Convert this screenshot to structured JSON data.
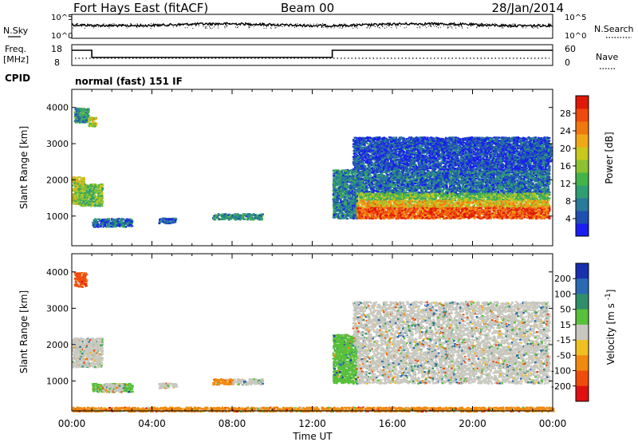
{
  "header": {
    "station": "Fort Hays East (fitACF)",
    "beam": "Beam 00",
    "date": "28/Jan/2014"
  },
  "noise_panel": {
    "left_label": "N.Sky",
    "left_ticks": [
      "10^5",
      "10^0"
    ],
    "right_label": "N.Search",
    "right_ticks": [
      "10^5",
      "10^0"
    ]
  },
  "freq_panel": {
    "left_label_1": "Freq.",
    "left_label_2": "[MHz]",
    "left_ticks": [
      "18",
      "8"
    ],
    "right_label": "Nave",
    "right_ticks": [
      "60",
      "0"
    ],
    "cpid_label": "CPID",
    "cpid_text": "normal (fast) 151 IF"
  },
  "chart_data": [
    {
      "type": "heatmap",
      "panel": "power",
      "ylabel": "Slant Range [km]",
      "ylim": [
        180,
        4500
      ],
      "yticks": [
        "1000",
        "2000",
        "3000",
        "4000"
      ],
      "xlim_hours": [
        0,
        24
      ],
      "colorbar": {
        "label": "Power [dB]",
        "ticks": [
          "4",
          "8",
          "12",
          "16",
          "20",
          "24",
          "28"
        ],
        "colors": [
          "#1a1ef0",
          "#1f4fb0",
          "#2a7a9a",
          "#2f9e72",
          "#43b448",
          "#8ac232",
          "#c8c81e",
          "#f0a818",
          "#f07810",
          "#f04a0c",
          "#e01808"
        ]
      },
      "regions": [
        {
          "t0": 0.0,
          "t1": 0.6,
          "r0": 1350,
          "r1": 2100,
          "level": 0.55
        },
        {
          "t0": 0.3,
          "t1": 1.5,
          "r0": 1300,
          "r1": 1900,
          "level": 0.45
        },
        {
          "t0": 0.1,
          "t1": 0.8,
          "r0": 3600,
          "r1": 4000,
          "level": 0.3
        },
        {
          "t0": 0.8,
          "t1": 1.2,
          "r0": 3500,
          "r1": 3750,
          "level": 0.55
        },
        {
          "t0": 1.0,
          "t1": 3.0,
          "r0": 720,
          "r1": 950,
          "level": 0.2
        },
        {
          "t0": 4.3,
          "t1": 5.2,
          "r0": 820,
          "r1": 960,
          "level": 0.15
        },
        {
          "t0": 7.0,
          "t1": 9.5,
          "r0": 920,
          "r1": 1080,
          "level": 0.3
        },
        {
          "t0": 13.0,
          "t1": 14.2,
          "r0": 950,
          "r1": 2300,
          "level": 0.25
        },
        {
          "t0": 14.2,
          "t1": 23.8,
          "r0": 1600,
          "r1": 2300,
          "level": 0.2
        },
        {
          "t0": 14.2,
          "t1": 23.8,
          "r0": 1450,
          "r1": 1650,
          "level": 0.45
        },
        {
          "t0": 14.2,
          "t1": 23.8,
          "r0": 1250,
          "r1": 1450,
          "level": 0.65
        },
        {
          "t0": 14.2,
          "t1": 23.8,
          "r0": 950,
          "r1": 1250,
          "level": 0.85
        },
        {
          "t0": 14.0,
          "t1": 23.8,
          "r0": 2300,
          "r1": 3200,
          "level": 0.12
        },
        {
          "t0": 22.5,
          "t1": 23.9,
          "r0": 2500,
          "r1": 3000,
          "level": 0.15
        }
      ]
    },
    {
      "type": "heatmap",
      "panel": "velocity",
      "ylabel": "Slant Range [km]",
      "ylim": [
        180,
        4500
      ],
      "yticks": [
        "1000",
        "2000",
        "3000",
        "4000"
      ],
      "xlim_hours": [
        0,
        24
      ],
      "xlabel": "Time UT",
      "xticks": [
        "00:00",
        "04:00",
        "08:00",
        "12:00",
        "16:00",
        "20:00",
        "00:00"
      ],
      "colorbar": {
        "label": "Velocity [m s^-1]",
        "ticks": [
          "200",
          "100",
          "50",
          "15",
          "-15",
          "-50",
          "-100",
          "-200"
        ],
        "colors": [
          "#1a2fb0",
          "#2a6ab4",
          "#2f8f6a",
          "#58c03a",
          "#c8c8c0",
          "#f0c020",
          "#f08a10",
          "#f04c0c",
          "#e01010"
        ]
      },
      "regions": [
        {
          "t0": 0.0,
          "t1": 1.5,
          "r0": 1400,
          "r1": 2200,
          "class": 4
        },
        {
          "t0": 0.1,
          "t1": 0.7,
          "r0": 3600,
          "r1": 4000,
          "class": 7
        },
        {
          "t0": 1.0,
          "t1": 3.0,
          "r0": 720,
          "r1": 950,
          "class": 3
        },
        {
          "t0": 1.5,
          "t1": 2.5,
          "r0": 720,
          "r1": 950,
          "class": 4
        },
        {
          "t0": 4.3,
          "t1": 5.2,
          "r0": 820,
          "r1": 960,
          "class": 4
        },
        {
          "t0": 7.0,
          "t1": 8.0,
          "r0": 920,
          "r1": 1080,
          "class": 6
        },
        {
          "t0": 8.0,
          "t1": 9.5,
          "r0": 920,
          "r1": 1080,
          "class": 4
        },
        {
          "t0": 13.0,
          "t1": 14.2,
          "r0": 950,
          "r1": 2300,
          "class": 3
        },
        {
          "t0": 14.2,
          "t1": 23.8,
          "r0": 950,
          "r1": 2000,
          "class": 4
        },
        {
          "t0": 14.0,
          "t1": 23.8,
          "r0": 2000,
          "r1": 3200,
          "class": 4
        },
        {
          "t0": 0.0,
          "t1": 24.0,
          "r0": 180,
          "r1": 300,
          "class": 6
        }
      ]
    }
  ]
}
